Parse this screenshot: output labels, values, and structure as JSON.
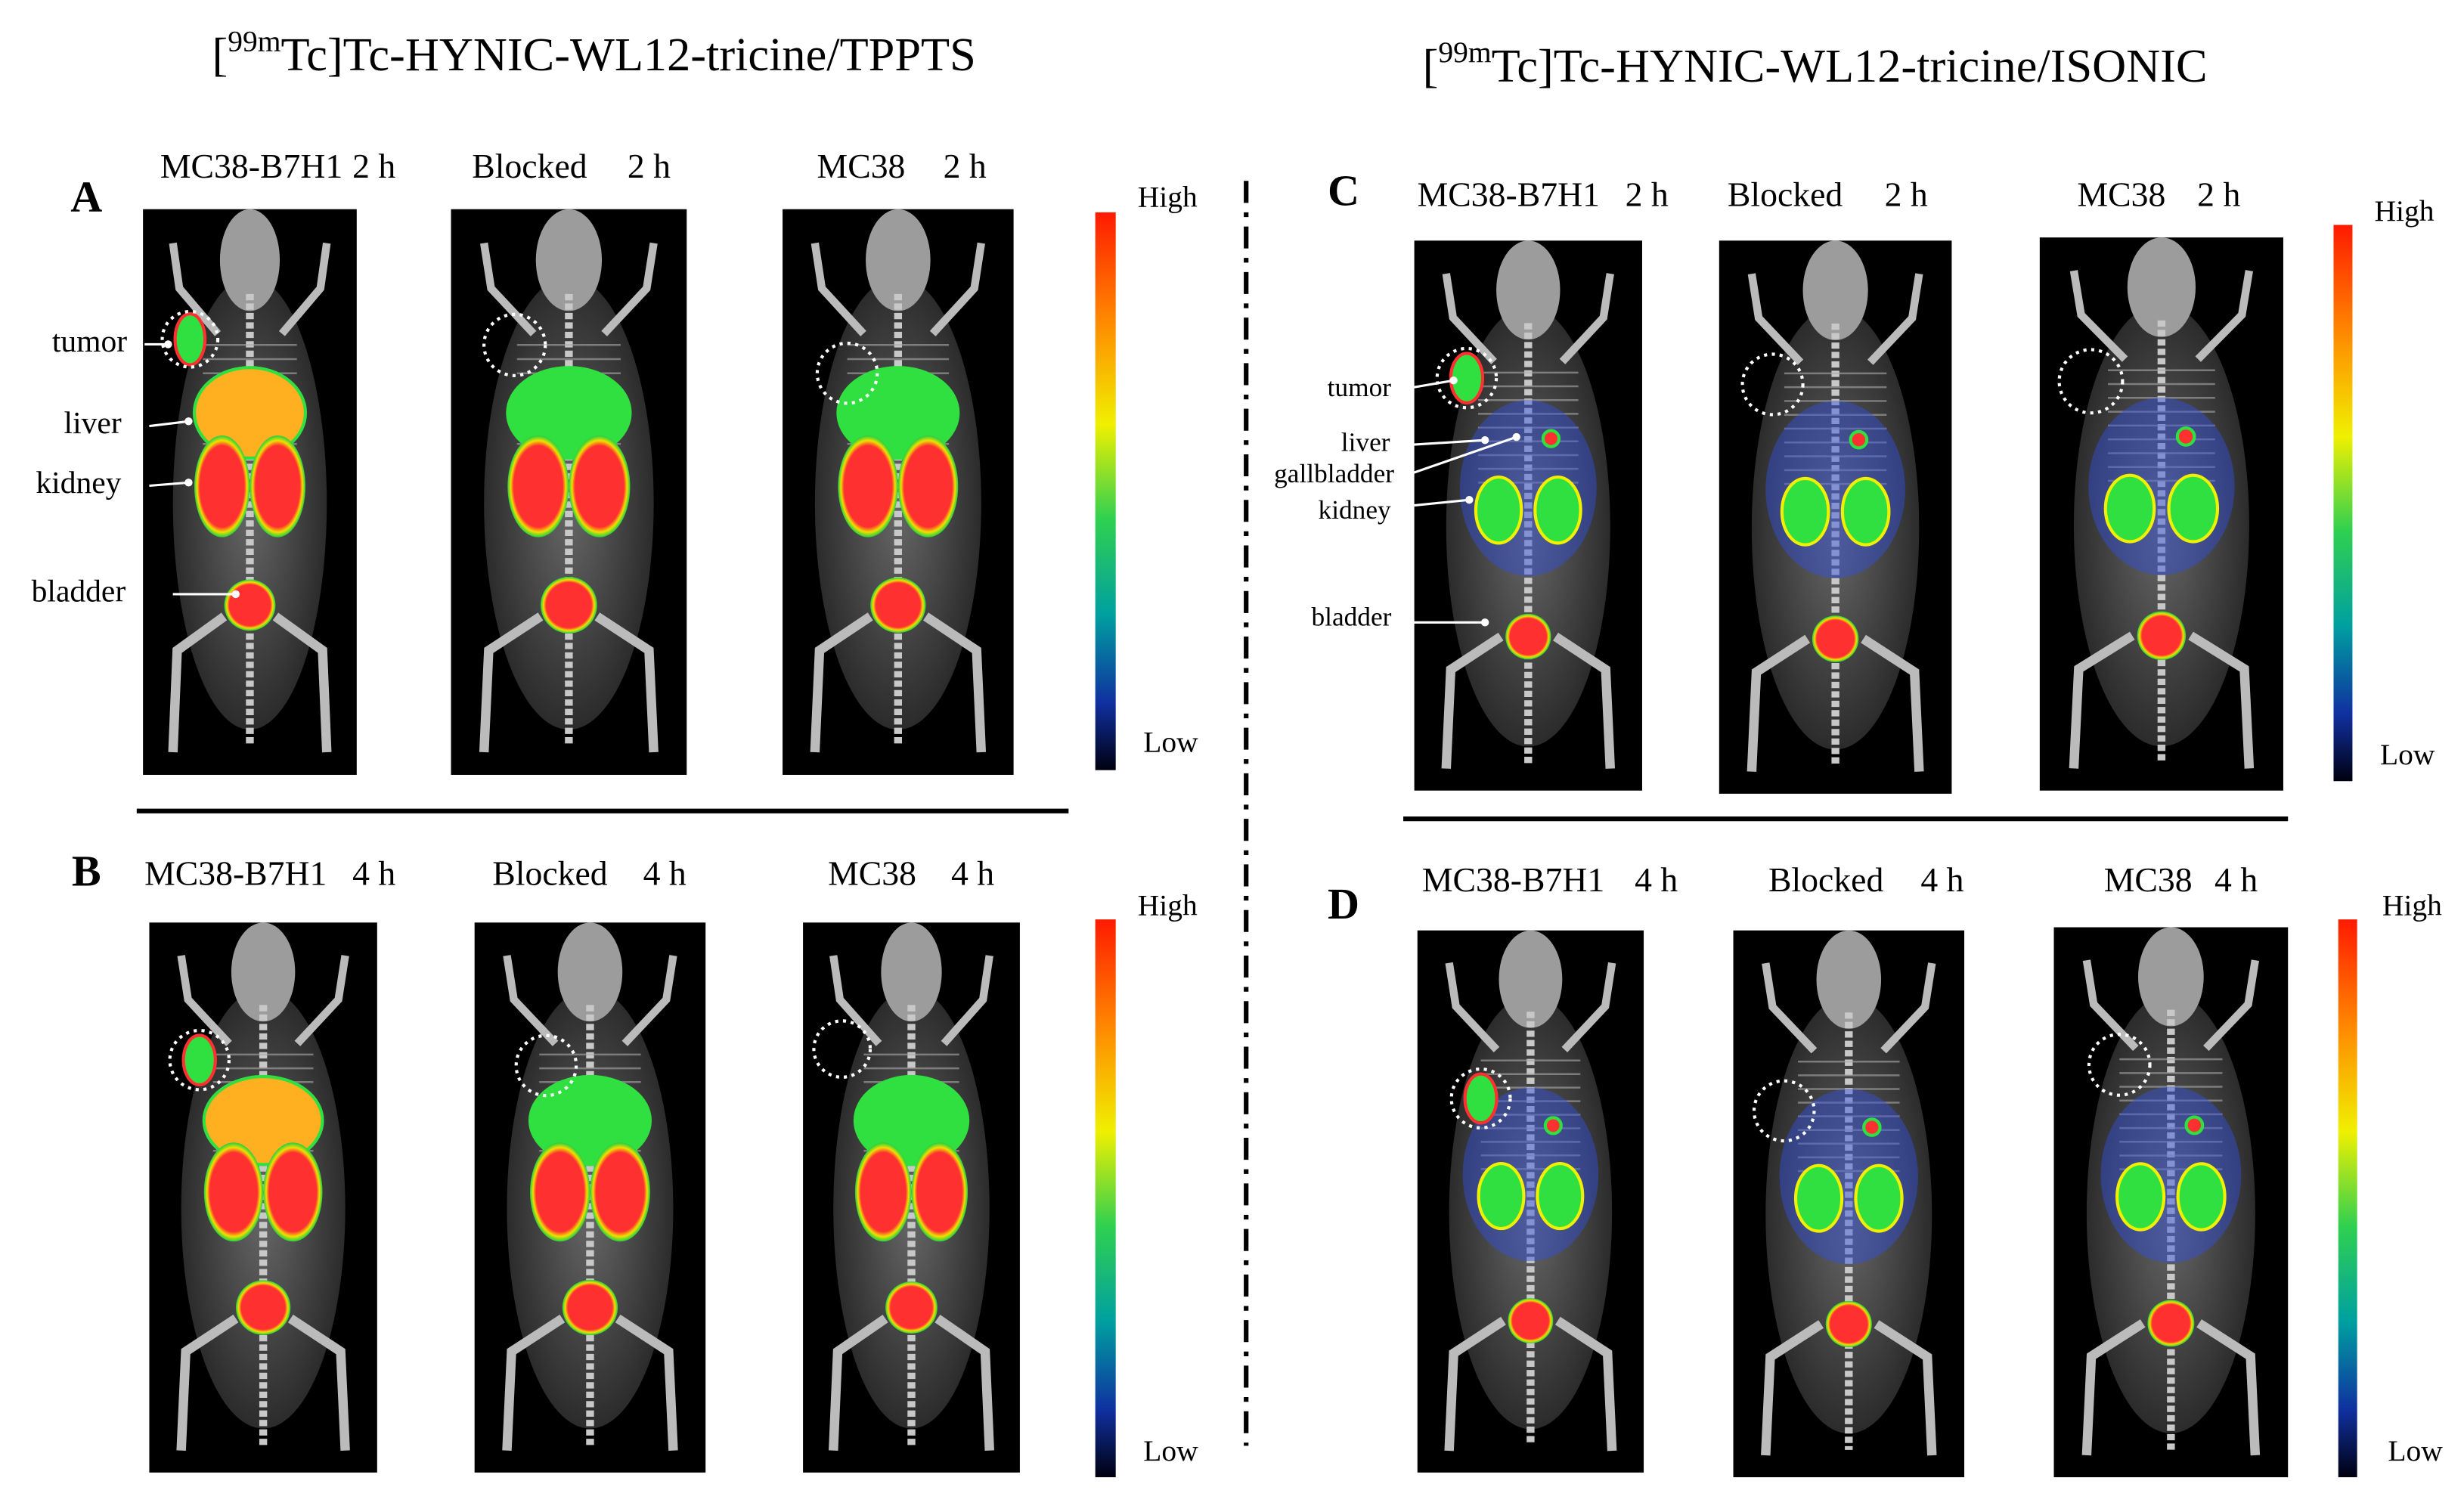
{
  "groups": [
    {
      "title": {
        "open": "[",
        "sup": "99m",
        "rest": "Tc]Tc-HYNIC-WL12-tricine/TPPTS"
      },
      "panels": [
        {
          "label": "A",
          "images": [
            {
              "name": "MC38-B7H1",
              "time": "2 h"
            },
            {
              "name": "Blocked",
              "time": "2 h"
            },
            {
              "name": "MC38",
              "time": "2 h"
            }
          ],
          "organ_labels": [
            "tumor",
            "liver",
            "kidney",
            "bladder"
          ],
          "colorbar": {
            "high": "High",
            "low": "Low"
          }
        },
        {
          "label": "B",
          "images": [
            {
              "name": "MC38-B7H1",
              "time": "4 h"
            },
            {
              "name": "Blocked",
              "time": "4 h"
            },
            {
              "name": "MC38",
              "time": "4 h"
            }
          ],
          "organ_labels": [],
          "colorbar": {
            "high": "High",
            "low": "Low"
          }
        }
      ]
    },
    {
      "title": {
        "open": "[",
        "sup": "99m",
        "rest": "Tc]Tc-HYNIC-WL12-tricine/ISONIC"
      },
      "panels": [
        {
          "label": "C",
          "images": [
            {
              "name": "MC38-B7H1",
              "time": "2 h"
            },
            {
              "name": "Blocked",
              "time": "2 h"
            },
            {
              "name": "MC38",
              "time": "2 h"
            }
          ],
          "organ_labels": [
            "tumor",
            "liver",
            "gallbladder",
            "kidney",
            "bladder"
          ],
          "colorbar": {
            "high": "High",
            "low": "Low"
          }
        },
        {
          "label": "D",
          "images": [
            {
              "name": "MC38-B7H1",
              "time": "4 h"
            },
            {
              "name": "Blocked",
              "time": "4 h"
            },
            {
              "name": "MC38",
              "time": "4 h"
            }
          ],
          "organ_labels": [],
          "colorbar": {
            "high": "High",
            "low": "Low"
          }
        }
      ]
    }
  ]
}
